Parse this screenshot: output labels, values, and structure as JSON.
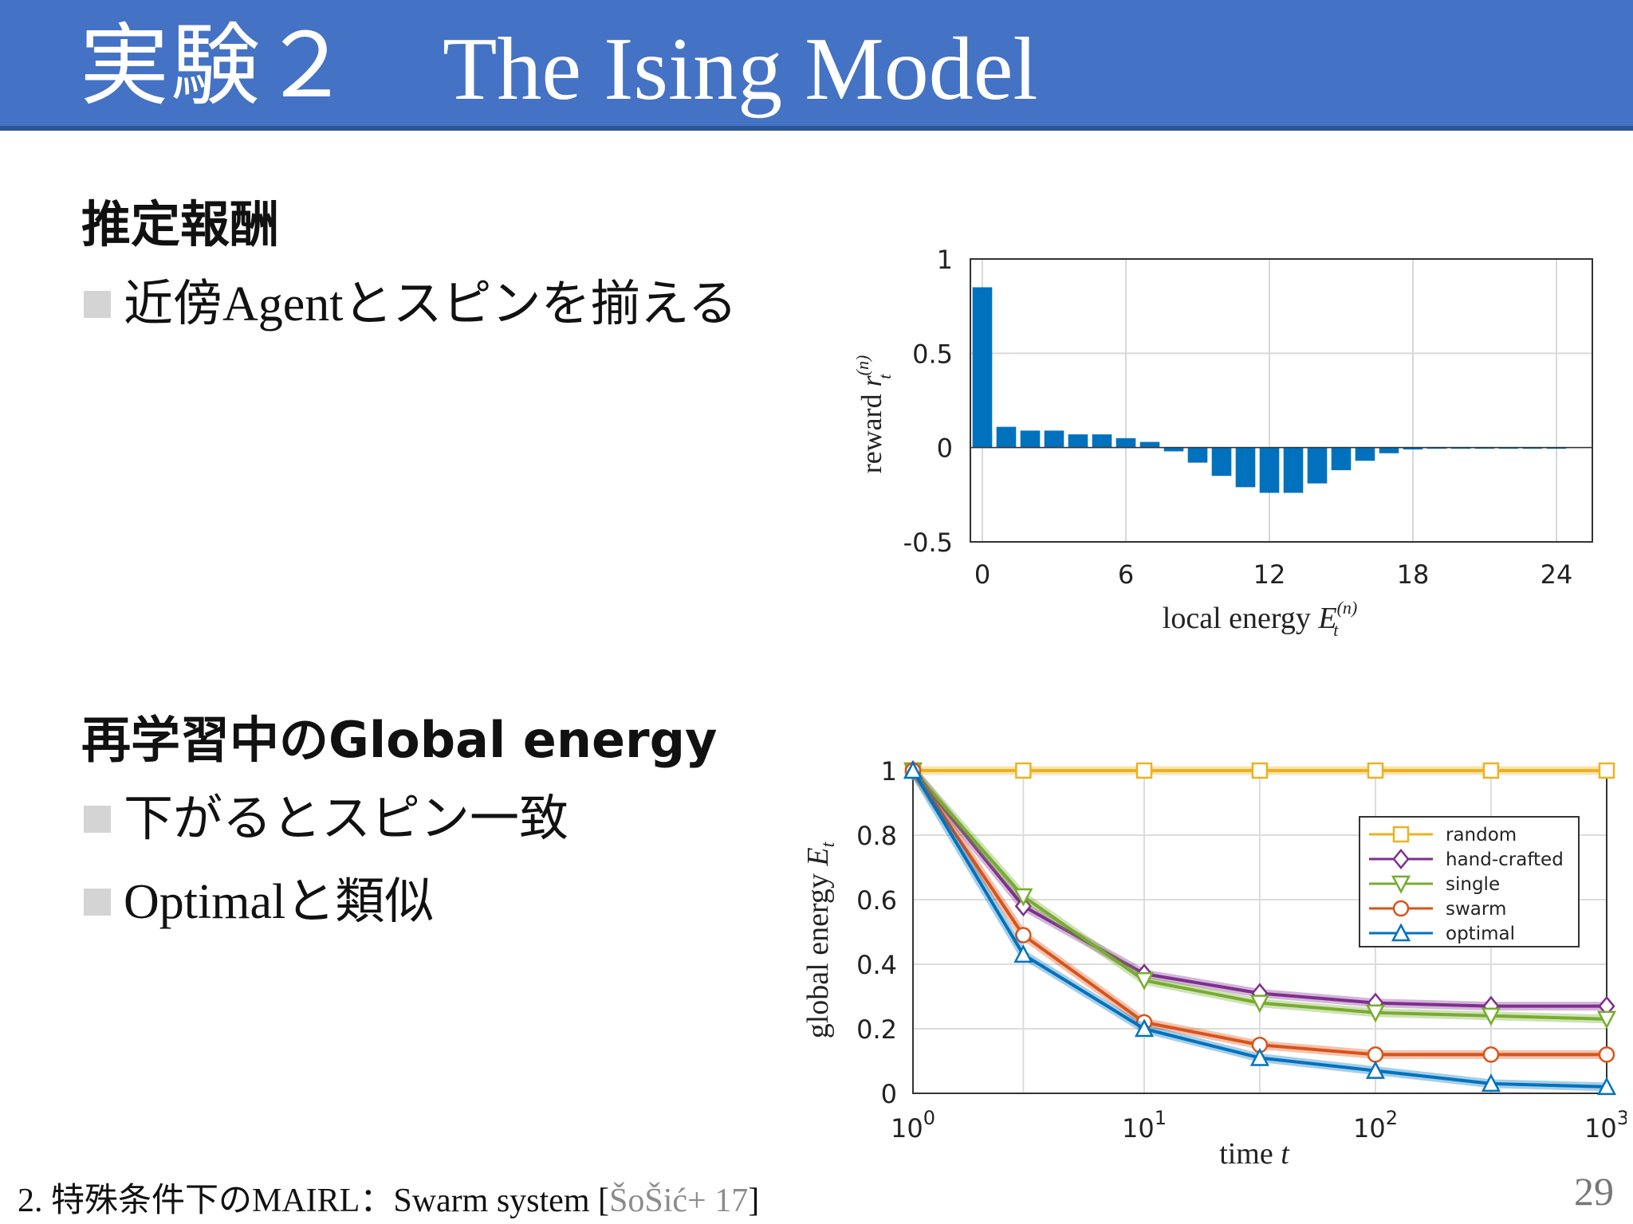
{
  "header": {
    "title_jp": "実験２",
    "title_en": "The Ising Model"
  },
  "section1": {
    "heading": "推定報酬",
    "bullets": [
      "近傍Agentとスピンを揃える"
    ]
  },
  "section2": {
    "heading": "再学習中のGlobal energy",
    "bullets": [
      "下がるとスピン一致",
      "Optimalと類似"
    ]
  },
  "footer": {
    "text": "2. 特殊条件下のMAIRL：Swarm system [",
    "citation": "ŠoŠić+ 17",
    "close": "]",
    "page": "29"
  },
  "colors": {
    "header": "#4472C4",
    "bar": "#0072BD",
    "random": "#EDB120",
    "hand_crafted": "#7E2F8E",
    "single": "#77AC30",
    "swarm": "#D95319",
    "optimal": "#0072BD"
  },
  "chart_data": [
    {
      "type": "bar",
      "ylabel": "reward r_t^(n)",
      "xlabel": "local energy E_t^(n)",
      "xticks": [
        "0",
        "6",
        "12",
        "18",
        "24"
      ],
      "yticks": [
        "1",
        "0.5",
        "0",
        "-0.5"
      ],
      "ylim": [
        -0.5,
        1
      ],
      "xlim": [
        -0.5,
        25.5
      ],
      "grid": true,
      "x": [
        0,
        1,
        2,
        3,
        4,
        5,
        6,
        7,
        8,
        9,
        10,
        11,
        12,
        13,
        14,
        15,
        16,
        17,
        18,
        19,
        20,
        21,
        22,
        23,
        24
      ],
      "values": [
        0.85,
        0.11,
        0.09,
        0.09,
        0.07,
        0.07,
        0.05,
        0.03,
        -0.02,
        -0.08,
        -0.15,
        -0.21,
        -0.24,
        -0.24,
        -0.19,
        -0.12,
        -0.07,
        -0.03,
        -0.01,
        -0.005,
        -0.005,
        -0.005,
        -0.005,
        -0.005,
        -0.005
      ]
    },
    {
      "type": "line",
      "ylabel": "global energy E_t",
      "xlabel": "time t",
      "xscale": "log",
      "xlim": [
        1,
        1000
      ],
      "ylim": [
        0,
        1
      ],
      "yticks": [
        "0",
        "0.2",
        "0.4",
        "0.6",
        "0.8",
        "1"
      ],
      "xticks": [
        {
          "base": "10",
          "exp": "0"
        },
        {
          "base": "10",
          "exp": "1"
        },
        {
          "base": "10",
          "exp": "2"
        },
        {
          "base": "10",
          "exp": "3"
        }
      ],
      "grid": true,
      "legend_position": "top-right",
      "x": [
        1,
        3,
        10,
        31.6,
        100,
        316,
        1000
      ],
      "series": [
        {
          "name": "random",
          "marker": "square",
          "color": "#EDB120",
          "values": [
            1,
            1,
            1,
            1,
            1,
            1,
            1
          ]
        },
        {
          "name": "hand-crafted",
          "marker": "diamond",
          "color": "#7E2F8E",
          "values": [
            1,
            0.58,
            0.37,
            0.31,
            0.28,
            0.27,
            0.27
          ]
        },
        {
          "name": "single",
          "marker": "triangle-down",
          "color": "#77AC30",
          "values": [
            1,
            0.61,
            0.35,
            0.28,
            0.25,
            0.24,
            0.23
          ]
        },
        {
          "name": "swarm",
          "marker": "circle",
          "color": "#D95319",
          "values": [
            1,
            0.49,
            0.22,
            0.15,
            0.12,
            0.12,
            0.12
          ]
        },
        {
          "name": "optimal",
          "marker": "triangle-up",
          "color": "#0072BD",
          "values": [
            1,
            0.43,
            0.2,
            0.11,
            0.07,
            0.03,
            0.02
          ]
        }
      ]
    }
  ]
}
